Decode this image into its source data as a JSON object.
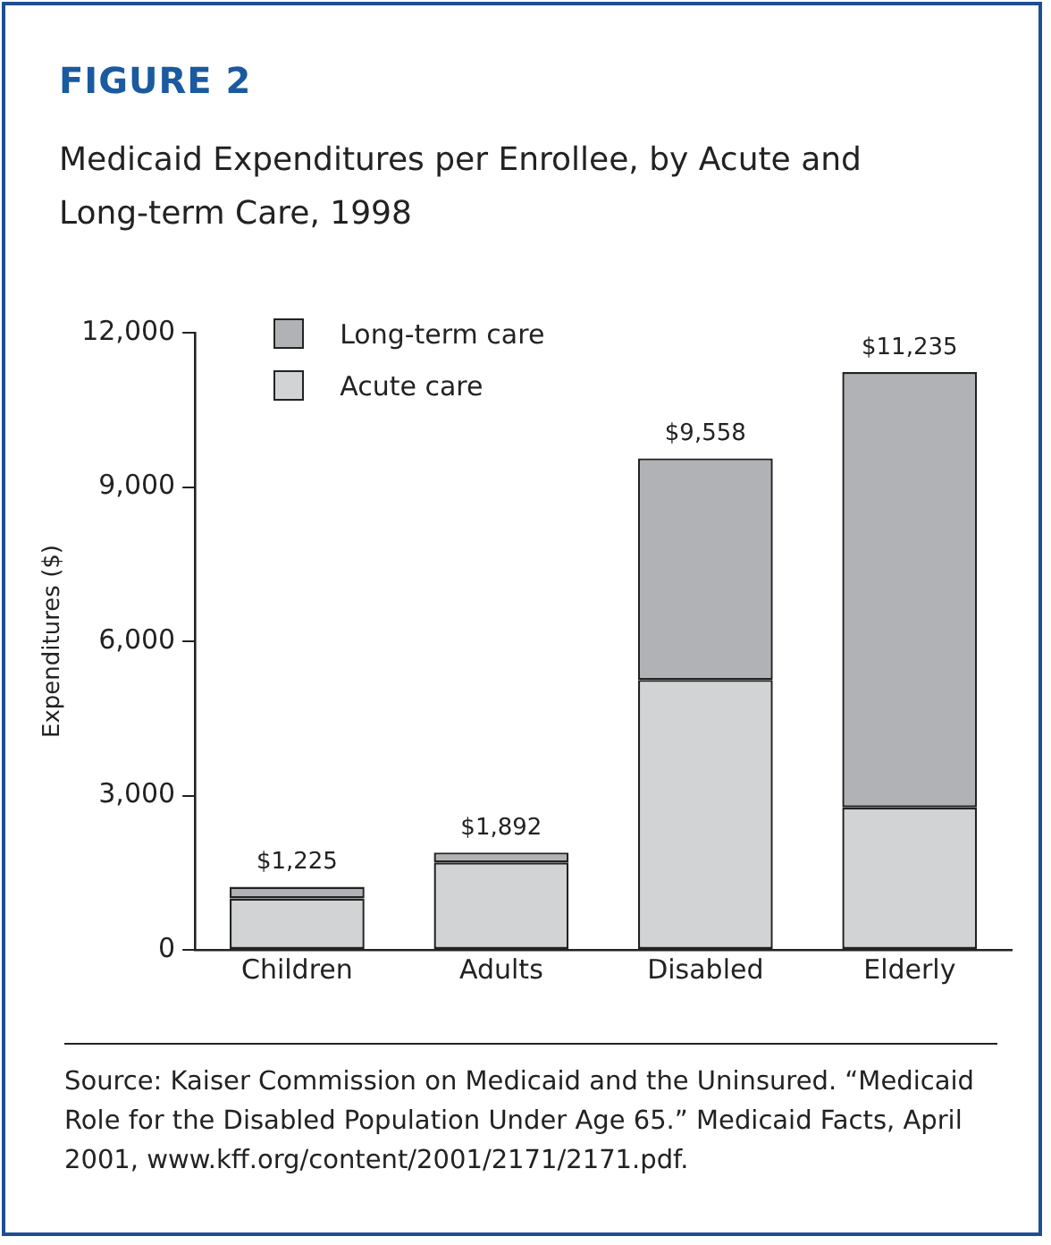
{
  "chart_data": {
    "type": "bar",
    "title": "FIGURE 2",
    "subtitle": "Medicaid Expenditures per Enrollee, by Acute and Long-term Care, 1998",
    "ylabel": "Expenditures ($)",
    "categories": [
      "Children",
      "Adults",
      "Disabled",
      "Elderly"
    ],
    "stacked": true,
    "series": [
      {
        "name": "Acute care",
        "color": "#d1d3d4",
        "values": [
          1000,
          1700,
          5250,
          2770
        ]
      },
      {
        "name": "Long-term care",
        "color": "#b1b2b5",
        "values": [
          225,
          192,
          4308,
          8465
        ]
      }
    ],
    "totals": [
      "$1,225",
      "$1,892",
      "$9,558",
      "$11,235"
    ],
    "ylim": [
      0,
      12000
    ],
    "yticks": [
      0,
      {
        "value": 3000,
        "label": "3,000"
      },
      {
        "value": 6000,
        "label": "6,000"
      },
      {
        "value": 9000,
        "label": "9,000"
      },
      {
        "value": 12000,
        "label": "12,000"
      }
    ],
    "grid": false,
    "legend": "top left",
    "annotations": [
      "Source: Kaiser Commission on Medicaid and the Uninsured. “Medicaid Role for the Disabled Population Under Age 65.” Medicaid Facts, April 2001, www.kff.org/content/2001/2171/2171.pdf."
    ]
  }
}
